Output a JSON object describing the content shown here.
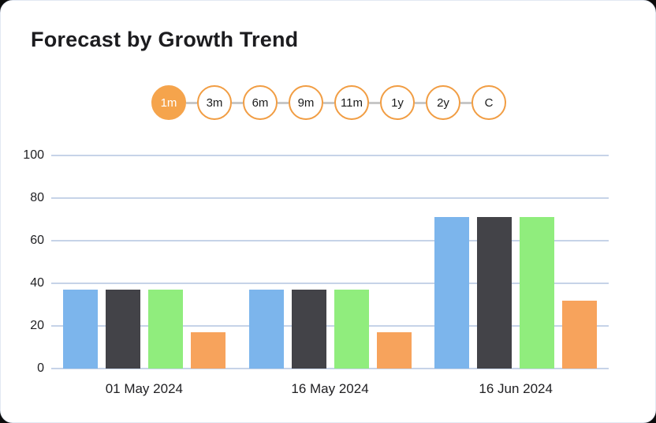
{
  "page": {
    "background_color": "#0c0c0c",
    "card_background_color": "#ffffff"
  },
  "header": {
    "title": "Forecast by Growth Trend"
  },
  "range_selector": {
    "options": [
      "1m",
      "3m",
      "6m",
      "9m",
      "11m",
      "1y",
      "2y",
      "C"
    ],
    "selected": "1m",
    "selected_fill_color": "#f5a44c",
    "border_color": "#f19d43"
  },
  "chart_data": {
    "type": "bar",
    "title": "Forecast by Growth Trend",
    "categories": [
      "01 May 2024",
      "16 May 2024",
      "16 Jun 2024"
    ],
    "series": [
      {
        "name": "blue",
        "color": "#7cb5ec",
        "values": [
          37,
          37,
          71
        ]
      },
      {
        "name": "dark-gray",
        "color": "#434348",
        "values": [
          37,
          37,
          71
        ]
      },
      {
        "name": "green",
        "color": "#90ed7d",
        "values": [
          37,
          37,
          71
        ]
      },
      {
        "name": "orange",
        "color": "#f7a35c",
        "values": [
          17,
          17,
          32
        ]
      }
    ],
    "xlabel": "",
    "ylabel": "",
    "ylim": [
      0,
      100
    ],
    "yticks": [
      0,
      20,
      40,
      60,
      80,
      100
    ],
    "grid": true,
    "gridline_color": "#c6d3e8",
    "legend_position": "none"
  }
}
